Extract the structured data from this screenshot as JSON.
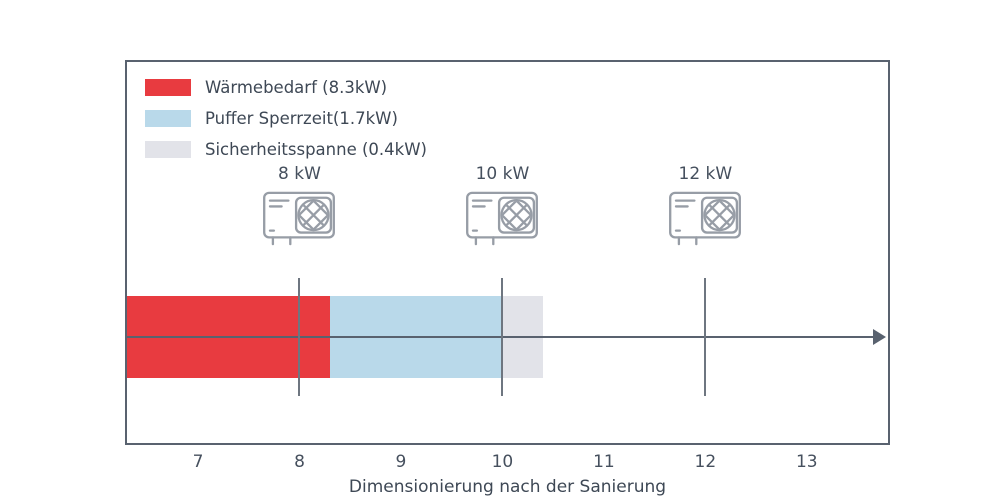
{
  "chart_data": {
    "type": "bar",
    "orientation": "horizontal-stacked",
    "title": "",
    "xlabel": "Dimensionierung nach der Sanierung",
    "ylabel": "",
    "xlim": [
      6.3,
      13.8
    ],
    "x_ticks": [
      7,
      8,
      9,
      10,
      11,
      12,
      13
    ],
    "grid": false,
    "legend_position": "upper-left",
    "segments": [
      {
        "label": "Wärmebedarf (8.3kW)",
        "value": 8.3,
        "start": 6.3,
        "end": 8.3,
        "color": "#e83b40"
      },
      {
        "label": "Puffer Sperrzeit(1.7kW)",
        "value": 1.7,
        "start": 8.3,
        "end": 10.0,
        "color": "#b9d9ea"
      },
      {
        "label": "Sicherheitsspanne (0.4kW)",
        "value": 0.4,
        "start": 10.0,
        "end": 10.4,
        "color": "#e2e3e9"
      }
    ],
    "pumps": [
      {
        "label": "8 kW",
        "x": 8
      },
      {
        "label": "10 kW",
        "x": 10
      },
      {
        "label": "12 kW",
        "x": 12
      }
    ],
    "colors": {
      "axis": "#59626f",
      "vline": "#6e7680",
      "text": "#46505e",
      "icon": "#979da6"
    }
  }
}
